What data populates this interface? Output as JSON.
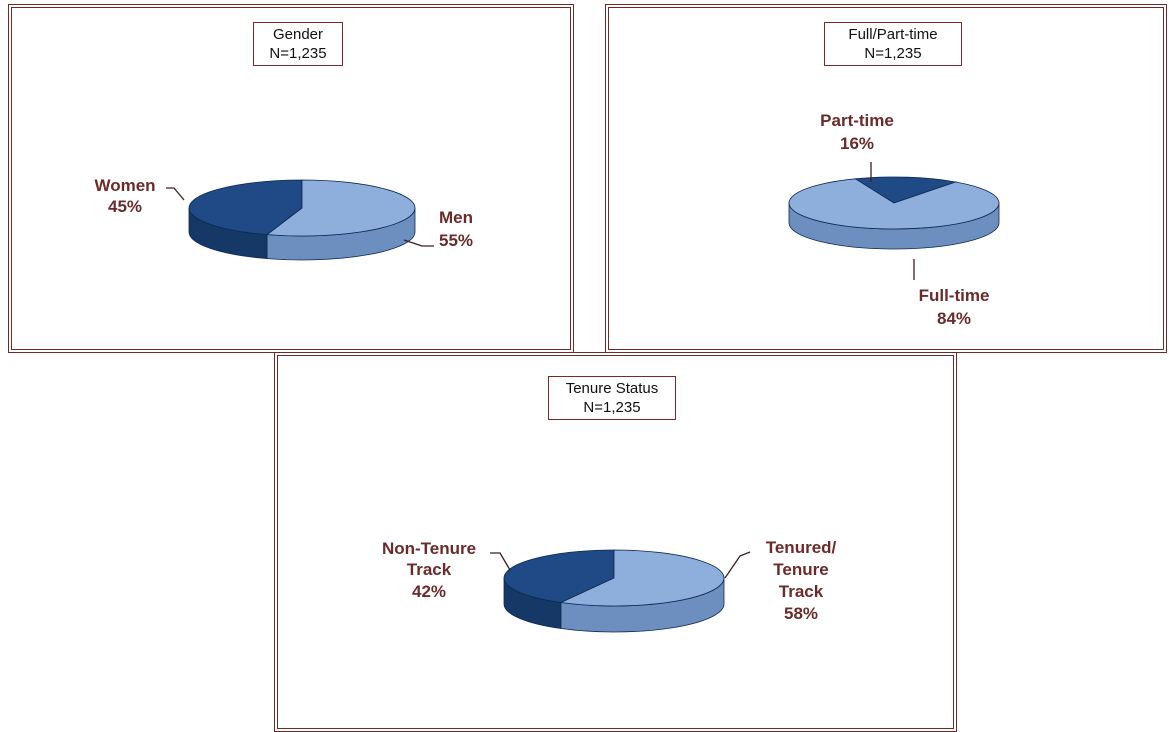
{
  "colors": {
    "dark_slice": "#1f4a85",
    "dark_slice_side": "#163866",
    "light_slice": "#8eaedb",
    "light_slice_side": "#6d8fc0",
    "label": "#6b2b2b",
    "frame": "#6b2b2b"
  },
  "chart_data": [
    {
      "type": "pie",
      "title": "Gender",
      "subtitle": "N=1,235",
      "slices": [
        {
          "label": "Women",
          "pct_label": "45%",
          "value": 45
        },
        {
          "label": "Men",
          "pct_label": "55%",
          "value": 55
        }
      ]
    },
    {
      "type": "pie",
      "title": "Full/Part-time",
      "subtitle": "N=1,235",
      "slices": [
        {
          "label": "Part-time",
          "pct_label": "16%",
          "value": 16
        },
        {
          "label": "Full-time",
          "pct_label": "84%",
          "value": 84
        }
      ]
    },
    {
      "type": "pie",
      "title": "Tenure Status",
      "subtitle": "N=1,235",
      "slices": [
        {
          "label_lines": [
            "Non-Tenure",
            "Track"
          ],
          "pct_label": "42%",
          "value": 42
        },
        {
          "label_lines": [
            "Tenured/",
            "Tenure",
            "Track"
          ],
          "pct_label": "58%",
          "value": 58
        }
      ]
    }
  ]
}
